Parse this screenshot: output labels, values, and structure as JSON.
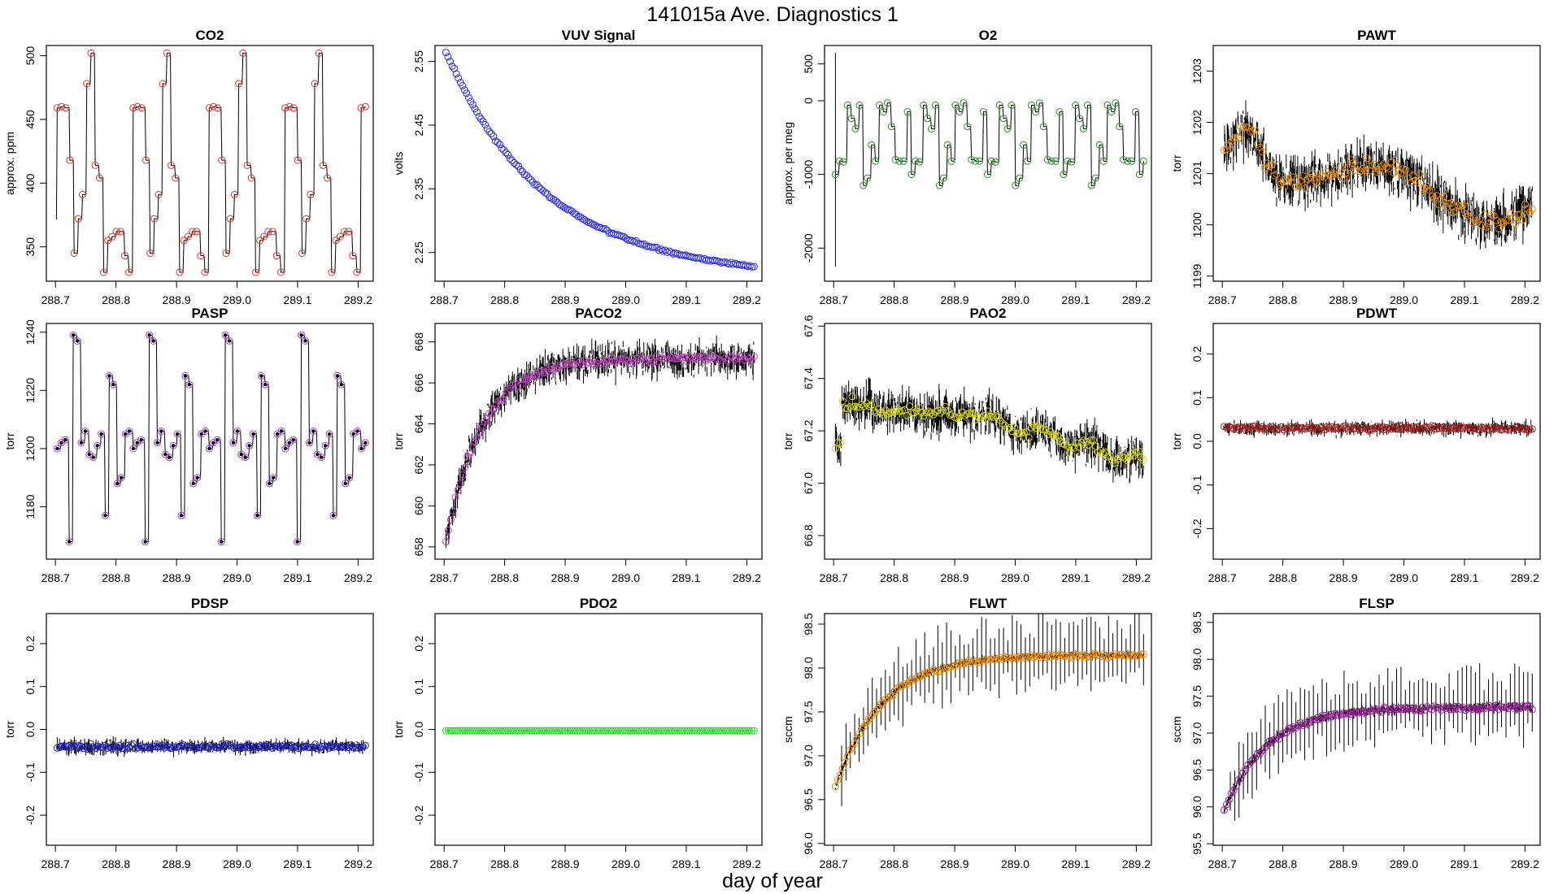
{
  "figure": {
    "title": "141015a   Ave. Diagnostics 1",
    "xlabel": "day of year"
  },
  "chart_data": [
    {
      "type": "line",
      "title": "CO2",
      "ylabel": "approx. ppm",
      "xlim": [
        288.685,
        289.225
      ],
      "ylim": [
        323,
        508
      ],
      "yticks": [
        350,
        400,
        450,
        500
      ],
      "xticks": [
        288.7,
        288.8,
        288.9,
        289.0,
        289.1,
        289.2
      ],
      "marker_color": "#e8302c",
      "pattern": "co2",
      "noise": 0,
      "tnoise": 0,
      "series_start": [
        288.703,
        372
      ]
    },
    {
      "type": "line",
      "title": "VUV Signal",
      "ylabel": "volts",
      "xlim": [
        288.685,
        289.225
      ],
      "ylim": [
        2.205,
        2.575
      ],
      "yticks": [
        2.25,
        2.35,
        2.45,
        2.55
      ],
      "xticks": [
        288.7,
        288.8,
        288.9,
        289.0,
        289.1,
        289.2
      ],
      "marker_color": "#2b2bdc",
      "pattern": "exp_decay",
      "start": 2.565,
      "end": 2.228,
      "k": 3.2,
      "noise": 0.002,
      "tnoise": 0
    },
    {
      "type": "line",
      "title": "O2",
      "ylabel": "approx. per meg",
      "xlim": [
        288.685,
        289.225
      ],
      "ylim": [
        -2450,
        750
      ],
      "yticks": [
        500,
        0,
        -1000,
        -2000
      ],
      "xticks": [
        288.7,
        288.8,
        288.9,
        289.0,
        289.1,
        289.2
      ],
      "marker_color": "#2e8b2e",
      "pattern": "o2",
      "noise": 0,
      "tnoise": 0,
      "spike": [
        288.703,
        650,
        -2250
      ]
    },
    {
      "type": "line",
      "title": "PAWT",
      "ylabel": "torr",
      "xlim": [
        288.685,
        289.225
      ],
      "ylim": [
        1198.9,
        1203.5
      ],
      "yticks": [
        1199,
        1200,
        1201,
        1202,
        1203
      ],
      "xticks": [
        288.7,
        288.8,
        288.9,
        289.0,
        289.1,
        289.2
      ],
      "marker_color": "#f08c00",
      "pattern": "pawt",
      "noise": 0.18,
      "tnoise": 0.9
    },
    {
      "type": "line",
      "title": "PASP",
      "ylabel": "torr",
      "xlim": [
        288.685,
        289.225
      ],
      "ylim": [
        1162,
        1243
      ],
      "yticks": [
        1180,
        1200,
        1220,
        1240
      ],
      "xticks": [
        288.7,
        288.8,
        288.9,
        289.0,
        289.1,
        289.2
      ],
      "marker_color": "#a040d0",
      "pattern": "pasp",
      "noise": 0,
      "tnoise": 0
    },
    {
      "type": "line",
      "title": "PACO2",
      "ylabel": "torr",
      "xlim": [
        288.685,
        289.225
      ],
      "ylim": [
        657.4,
        668.9
      ],
      "yticks": [
        658,
        660,
        662,
        664,
        666,
        668
      ],
      "xticks": [
        288.7,
        288.8,
        288.9,
        289.0,
        289.1,
        289.2
      ],
      "marker_color": "#c040c0",
      "pattern": "exp_rise",
      "start": 658.3,
      "end": 667.2,
      "k": 14,
      "noise": 0.15,
      "tnoise": 1.5
    },
    {
      "type": "line",
      "title": "PAO2",
      "ylabel": "torr",
      "xlim": [
        288.685,
        289.225
      ],
      "ylim": [
        66.71,
        67.61
      ],
      "yticks": [
        66.8,
        67.0,
        67.2,
        67.4,
        67.6
      ],
      "xticks": [
        288.7,
        288.8,
        288.9,
        289.0,
        289.1,
        289.2
      ],
      "marker_color": "#d8d800",
      "pattern": "pao2",
      "noise": 0.02,
      "tnoise": 0.15
    },
    {
      "type": "line",
      "title": "PDWT",
      "ylabel": "torr",
      "xlim": [
        288.685,
        289.225
      ],
      "ylim": [
        -0.27,
        0.27
      ],
      "yticks": [
        0.2,
        0.1,
        0.0,
        -0.1,
        -0.2
      ],
      "xticks": [
        288.7,
        288.8,
        288.9,
        289.0,
        289.1,
        289.2
      ],
      "marker_color": "#b02020",
      "pattern": "flat",
      "level": 0.03,
      "noise": 0.005,
      "tnoise": 0.03
    },
    {
      "type": "line",
      "title": "PDSP",
      "ylabel": "torr",
      "xlim": [
        288.685,
        289.225
      ],
      "ylim": [
        -0.27,
        0.27
      ],
      "yticks": [
        0.2,
        0.1,
        0.0,
        -0.1,
        -0.2
      ],
      "xticks": [
        288.7,
        288.8,
        288.9,
        289.0,
        289.1,
        289.2
      ],
      "marker_color": "#2222c0",
      "pattern": "flat",
      "level": -0.04,
      "noise": 0.005,
      "tnoise": 0.03
    },
    {
      "type": "line",
      "title": "PDO2",
      "ylabel": "torr",
      "xlim": [
        288.685,
        289.225
      ],
      "ylim": [
        -0.27,
        0.27
      ],
      "yticks": [
        0.2,
        0.1,
        0.0,
        -0.1,
        -0.2
      ],
      "xticks": [
        288.7,
        288.8,
        288.9,
        289.0,
        289.1,
        289.2
      ],
      "marker_color": "#22dd22",
      "pattern": "flat",
      "level": -0.003,
      "noise": 0,
      "tnoise": 0.002
    },
    {
      "type": "line",
      "title": "FLWT",
      "ylabel": "sccm",
      "xlim": [
        288.685,
        289.225
      ],
      "ylim": [
        95.98,
        98.62
      ],
      "yticks": [
        96.0,
        96.5,
        97.0,
        97.5,
        98.0,
        98.5
      ],
      "xticks": [
        288.7,
        288.8,
        288.9,
        289.0,
        289.1,
        289.2
      ],
      "marker_color": "#f08c00",
      "pattern": "exp_rise",
      "start": 96.65,
      "end": 98.15,
      "k": 11,
      "noise": 0.02,
      "tnoise": 0.08,
      "spikes": true
    },
    {
      "type": "line",
      "title": "FLSP",
      "ylabel": "sccm",
      "xlim": [
        288.685,
        289.225
      ],
      "ylim": [
        95.48,
        98.62
      ],
      "yticks": [
        95.5,
        96.0,
        96.5,
        97.0,
        97.5,
        98.0,
        98.5
      ],
      "xticks": [
        288.7,
        288.8,
        288.9,
        289.0,
        289.1,
        289.2
      ],
      "marker_color": "#a020a0",
      "pattern": "exp_rise",
      "start": 95.95,
      "end": 97.35,
      "k": 12,
      "noise": 0.03,
      "tnoise": 0.12,
      "spikes": true
    }
  ]
}
